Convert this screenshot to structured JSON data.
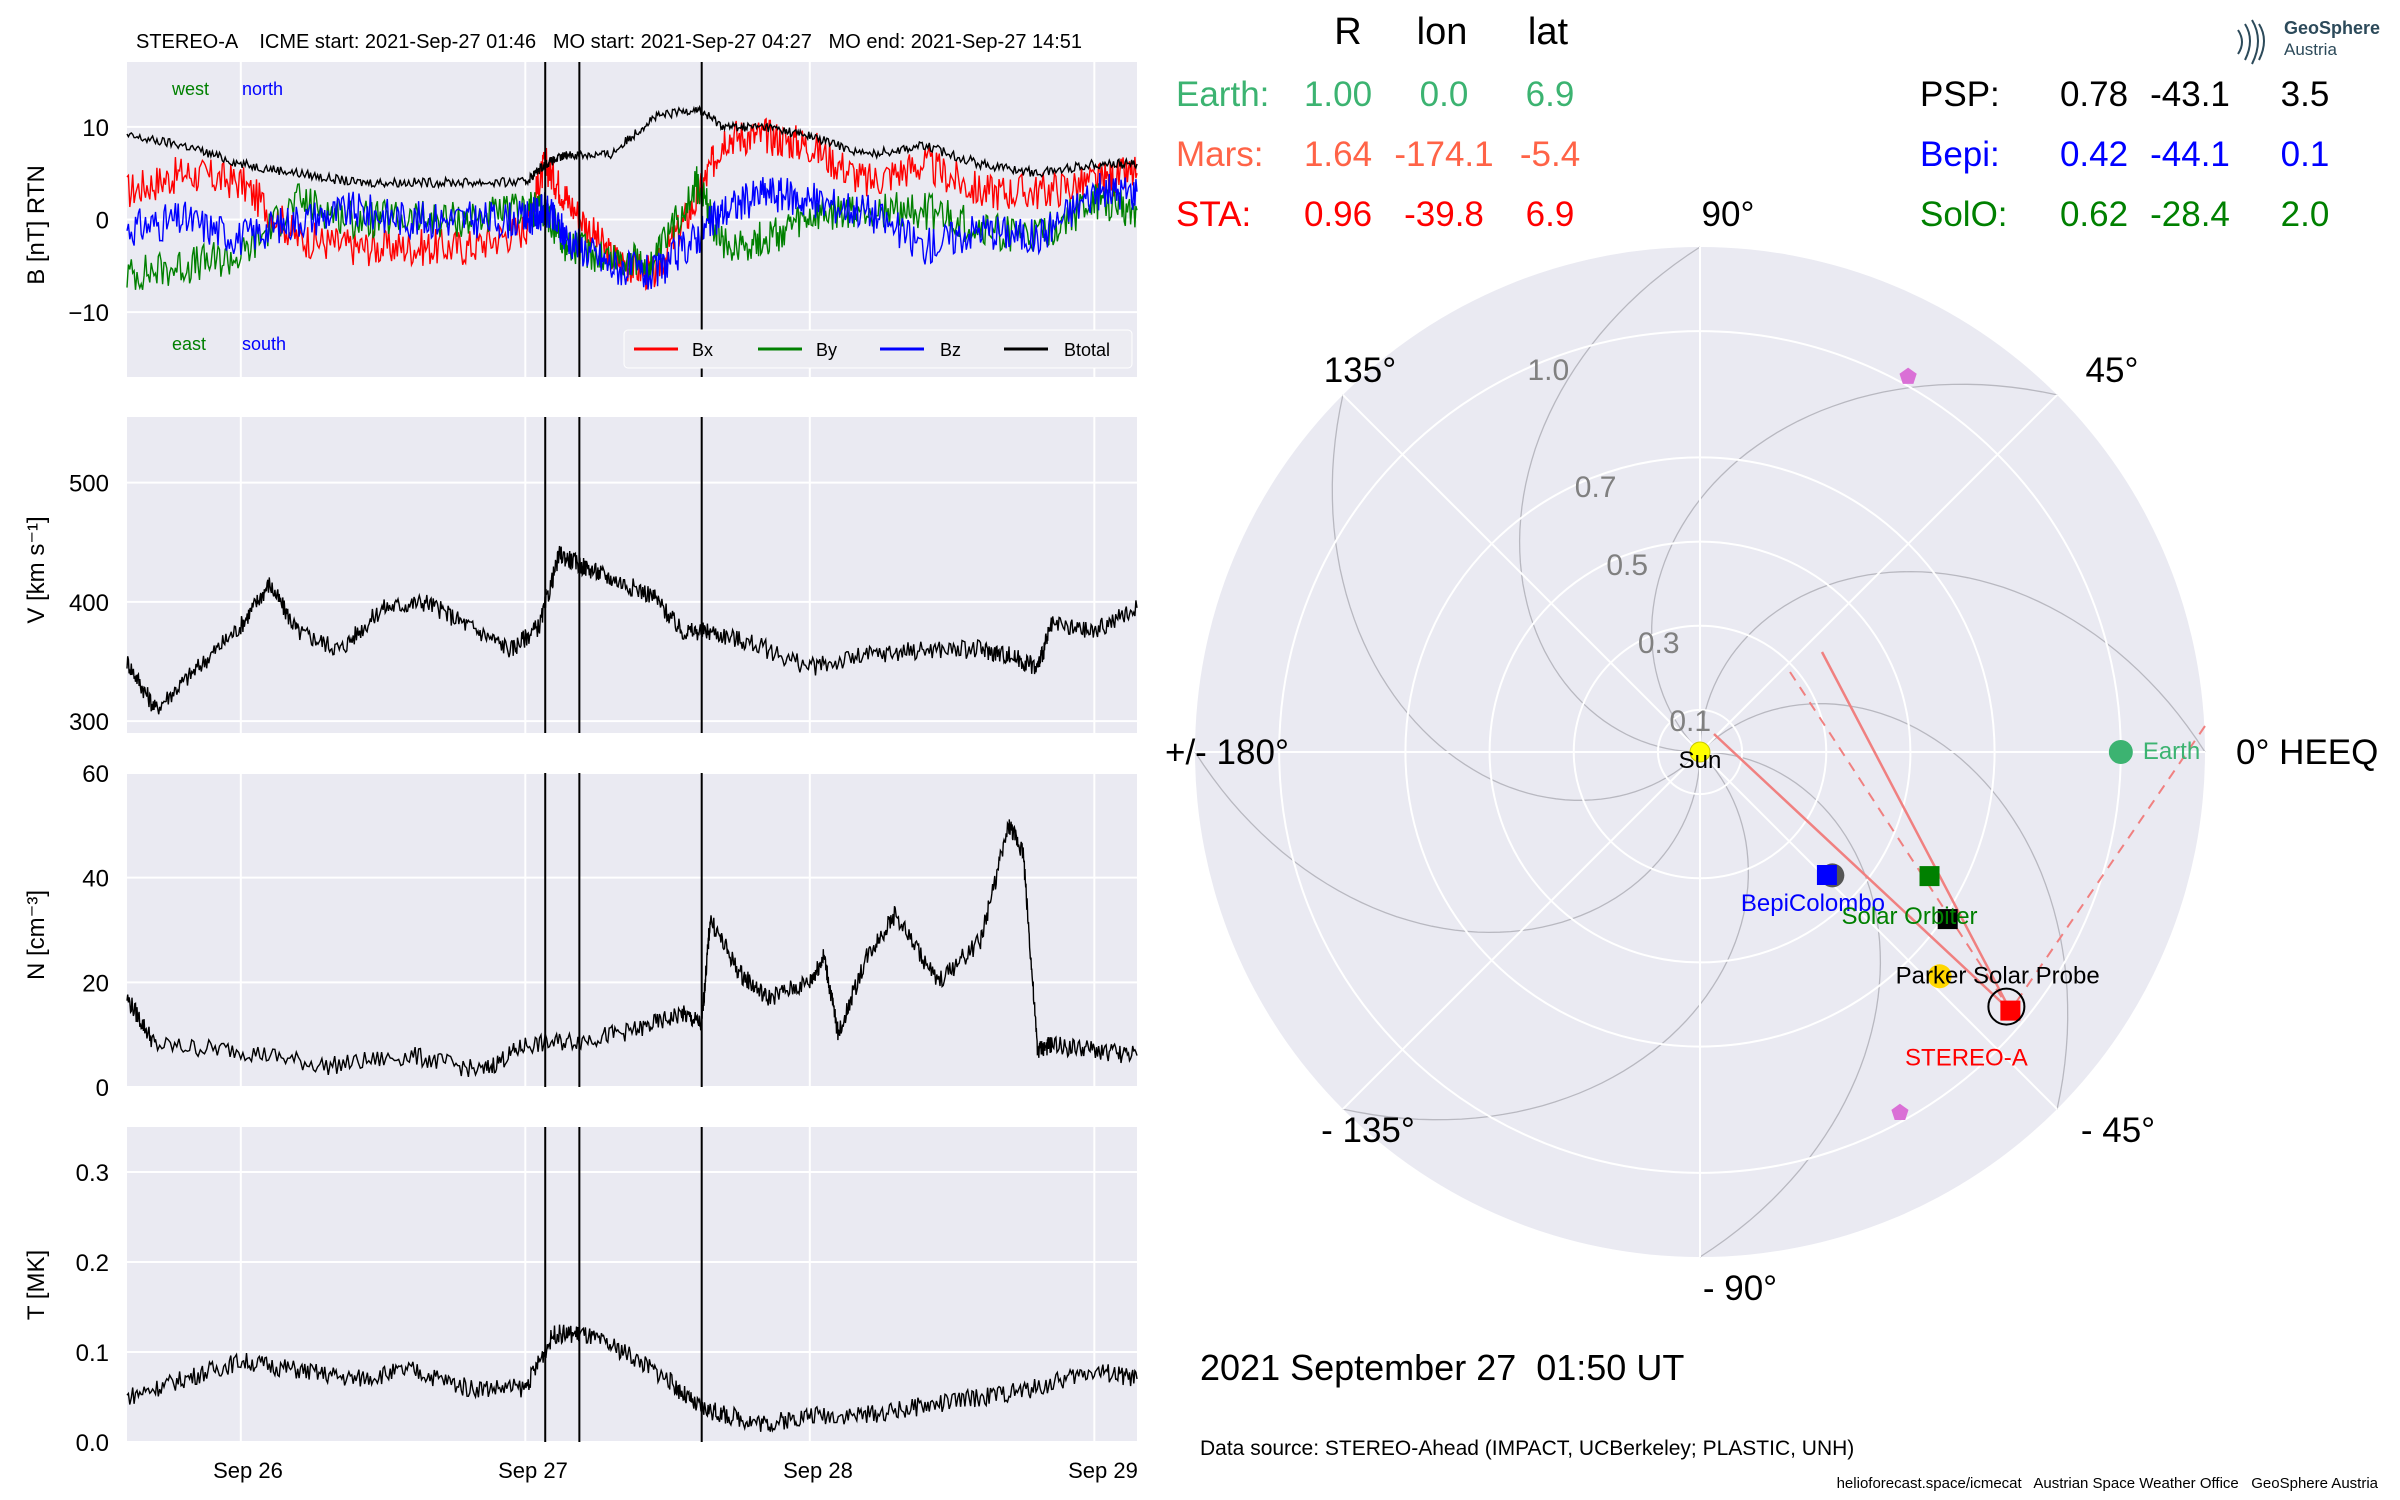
{
  "header_line": "STEREO-A    ICME start: 2021-Sep-27 01:46   MO start: 2021-Sep-27 04:27   MO end: 2021-Sep-27 14:51",
  "panels": {
    "bfield": {
      "ylabel": "B [nT] RTN",
      "ylim": [
        -17,
        17
      ],
      "yticks": [
        -10,
        0,
        10
      ],
      "tick_labels": [
        "−10",
        "0",
        "10"
      ],
      "corner_labels": {
        "west": "west",
        "north": "north",
        "east": "east",
        "south": "south"
      },
      "legend": [
        "Bx",
        "By",
        "Bz",
        "Btotal"
      ]
    },
    "speed": {
      "ylabel": "V [km s⁻¹]",
      "ylim": [
        290,
        555
      ],
      "yticks": [
        300,
        400,
        500
      ],
      "tick_labels": [
        "300",
        "400",
        "500"
      ]
    },
    "density": {
      "ylabel": "N [cm⁻³]",
      "ylim": [
        0,
        60
      ],
      "yticks": [
        0,
        20,
        40,
        60
      ],
      "tick_labels": [
        "0",
        "20",
        "40",
        "60"
      ]
    },
    "temperature": {
      "ylabel": "T [MK]",
      "ylim": [
        0,
        0.35
      ],
      "yticks": [
        0,
        0.1,
        0.2,
        0.3
      ],
      "tick_labels": [
        "0.0",
        "0.1",
        "0.2",
        "0.3"
      ]
    }
  },
  "x_tick_labels": [
    "Sep 26",
    "Sep 27",
    "Sep 28",
    "Sep 29"
  ],
  "positions_table": {
    "headers": [
      "R",
      "lon",
      "lat"
    ],
    "rows_left": [
      {
        "name": "Earth:",
        "R": "1.00",
        "lon": "0.0",
        "lat": "6.9",
        "color": "#3cb371"
      },
      {
        "name": "Mars:",
        "R": "1.64",
        "lon": "-174.1",
        "lat": "-5.4",
        "color": "#ff6347"
      },
      {
        "name": "STA:",
        "R": "0.96",
        "lon": "-39.8",
        "lat": "6.9",
        "color": "#ff0000"
      }
    ],
    "rows_right": [
      {
        "name": "PSP:",
        "R": "0.78",
        "lon": "-43.1",
        "lat": "3.5",
        "color": "#000000"
      },
      {
        "name": "Bepi:",
        "R": "0.42",
        "lon": "-44.1",
        "lat": "0.1",
        "color": "#0000ff"
      },
      {
        "name": "SolO:",
        "R": "0.62",
        "lon": "-28.4",
        "lat": "2.0",
        "color": "#008000"
      }
    ]
  },
  "polar": {
    "angle_labels": [
      "90°",
      "45°",
      "0° HEEQ",
      "- 45°",
      "- 90°",
      "- 135°",
      "+/- 180°",
      "135°"
    ],
    "radial_labels": [
      "0.1",
      "0.3",
      "0.5",
      "0.7",
      "1.0"
    ],
    "sun_label": "Sun",
    "bodies": {
      "earth": "Earth",
      "bepi": "BepiColombo",
      "solo": "Solar Orbiter",
      "psp": "Parker Solar Probe",
      "sta": "STEREO-A"
    }
  },
  "timestamp": "2021 September 27  01:50 UT",
  "data_source": "Data source: STEREO-Ahead (IMPACT, UCBerkeley; PLASTIC, UNH)",
  "footer": "helioforecast.space/icmecat   Austrian Space Weather Office   GeoSphere Austria",
  "logo": {
    "line1": "GeoSphere",
    "line2": "Austria"
  },
  "chart_data": [
    {
      "type": "line",
      "title": "STEREO-A    ICME start: 2021-Sep-27 01:46   MO start: 2021-Sep-27 04:27   MO end: 2021-Sep-27 14:51",
      "xlabel": "",
      "ylabel": "B [nT] RTN",
      "x_unit": "days since 2021-09-26 00:00 (axis shows Sep 26 .. Sep 29)",
      "xlim": [
        -0.4,
        3.15
      ],
      "ylim": [
        -17,
        17
      ],
      "event_lines": [
        1.07,
        1.19,
        1.62
      ],
      "series": [
        {
          "name": "Bx",
          "color": "#ff0000",
          "x": [
            -0.4,
            -0.2,
            0.0,
            0.2,
            0.4,
            0.6,
            0.8,
            1.0,
            1.07,
            1.15,
            1.3,
            1.45,
            1.6,
            1.7,
            1.85,
            2.0,
            2.2,
            2.4,
            2.6,
            2.8,
            3.0,
            3.15
          ],
          "y": [
            3,
            5,
            4,
            -2,
            -3,
            -3,
            -3,
            -1,
            6,
            2,
            -4,
            -6,
            2,
            9,
            9,
            8,
            4,
            6,
            3,
            3,
            4,
            5
          ]
        },
        {
          "name": "By",
          "color": "#008000",
          "x": [
            -0.4,
            -0.2,
            0.0,
            0.2,
            0.4,
            0.6,
            0.8,
            1.0,
            1.07,
            1.15,
            1.3,
            1.45,
            1.6,
            1.7,
            1.85,
            2.0,
            2.2,
            2.4,
            2.6,
            2.8,
            3.0,
            3.15
          ],
          "y": [
            -6,
            -5,
            -4,
            2,
            0,
            0,
            0,
            1,
            1,
            -3,
            -4,
            -5,
            4,
            -3,
            -2,
            0,
            1,
            1,
            -1,
            -2,
            2,
            1
          ]
        },
        {
          "name": "Bz",
          "color": "#0000ff",
          "x": [
            -0.4,
            -0.2,
            0.0,
            0.2,
            0.4,
            0.6,
            0.8,
            1.0,
            1.07,
            1.15,
            1.3,
            1.45,
            1.6,
            1.7,
            1.85,
            2.0,
            2.2,
            2.4,
            2.6,
            2.8,
            3.0,
            3.15
          ],
          "y": [
            -1,
            0,
            -2,
            0,
            1,
            0,
            0,
            0,
            1,
            -2,
            -5,
            -6,
            -2,
            1,
            3,
            2,
            1,
            -3,
            -1,
            -2,
            3,
            3
          ]
        },
        {
          "name": "Btotal",
          "color": "#000000",
          "x": [
            -0.4,
            -0.2,
            0.0,
            0.2,
            0.4,
            0.6,
            0.8,
            1.0,
            1.07,
            1.15,
            1.3,
            1.45,
            1.6,
            1.7,
            1.85,
            2.0,
            2.2,
            2.4,
            2.6,
            2.8,
            3.0,
            3.15
          ],
          "y": [
            9,
            8,
            6,
            5,
            4,
            4,
            4,
            4,
            6,
            7,
            7,
            11,
            12,
            10,
            10,
            9,
            7,
            8,
            6,
            5,
            6,
            6
          ]
        }
      ]
    },
    {
      "type": "line",
      "ylabel": "V [km s⁻¹]",
      "xlim": [
        -0.4,
        3.15
      ],
      "ylim": [
        290,
        555
      ],
      "series": [
        {
          "color": "#000000",
          "x": [
            -0.4,
            -0.3,
            -0.15,
            0.0,
            0.1,
            0.2,
            0.35,
            0.5,
            0.65,
            0.8,
            0.95,
            1.05,
            1.12,
            1.2,
            1.3,
            1.45,
            1.55,
            1.65,
            1.8,
            2.0,
            2.2,
            2.4,
            2.6,
            2.7,
            2.8,
            2.85,
            3.0,
            3.15
          ],
          "y": [
            350,
            310,
            345,
            380,
            415,
            375,
            360,
            395,
            400,
            380,
            360,
            380,
            440,
            430,
            420,
            405,
            375,
            375,
            365,
            345,
            355,
            360,
            360,
            355,
            345,
            380,
            375,
            395
          ]
        }
      ]
    },
    {
      "type": "line",
      "ylabel": "N [cm⁻³]",
      "xlim": [
        -0.4,
        3.15
      ],
      "ylim": [
        0,
        60
      ],
      "series": [
        {
          "color": "#000000",
          "x": [
            -0.4,
            -0.3,
            0.0,
            0.3,
            0.6,
            0.85,
            1.0,
            1.2,
            1.4,
            1.55,
            1.62,
            1.65,
            1.75,
            1.85,
            2.0,
            2.05,
            2.1,
            2.2,
            2.3,
            2.45,
            2.6,
            2.7,
            2.75,
            2.8,
            2.85,
            3.0,
            3.15
          ],
          "y": [
            17,
            8,
            7,
            4,
            6,
            3,
            8,
            9,
            11,
            14,
            12,
            32,
            22,
            17,
            20,
            25,
            10,
            25,
            33,
            20,
            28,
            50,
            45,
            7,
            8,
            7,
            6
          ]
        }
      ]
    },
    {
      "type": "line",
      "ylabel": "T [MK]",
      "xlim": [
        -0.4,
        3.15
      ],
      "ylim": [
        0,
        0.35
      ],
      "series": [
        {
          "color": "#000000",
          "x": [
            -0.4,
            -0.2,
            0.0,
            0.2,
            0.4,
            0.6,
            0.8,
            1.0,
            1.1,
            1.2,
            1.35,
            1.5,
            1.6,
            1.7,
            1.85,
            2.0,
            2.2,
            2.4,
            2.6,
            2.8,
            3.0,
            3.15
          ],
          "y": [
            0.05,
            0.07,
            0.09,
            0.08,
            0.07,
            0.08,
            0.06,
            0.06,
            0.12,
            0.12,
            0.1,
            0.07,
            0.04,
            0.03,
            0.02,
            0.03,
            0.03,
            0.04,
            0.05,
            0.06,
            0.08,
            0.07
          ]
        }
      ]
    },
    {
      "type": "scatter",
      "title": "",
      "projection": "polar",
      "angle_unit": "deg HEEQ longitude",
      "rlim": [
        0,
        1.2
      ],
      "points": [
        {
          "name": "Sun",
          "r": 0,
          "lon": 0,
          "color": "#ffff00"
        },
        {
          "name": "Earth",
          "r": 1.0,
          "lon": 0.0,
          "color": "#3cb371"
        },
        {
          "name": "STEREO-A",
          "r": 0.96,
          "lon": -39.8,
          "color": "#ff0000"
        },
        {
          "name": "Parker Solar Probe",
          "r": 0.78,
          "lon": -43.1,
          "color": "#ffd700"
        },
        {
          "name": "BepiColombo",
          "r": 0.42,
          "lon": -44.1,
          "color": "#0000ff"
        },
        {
          "name": "Solar Orbiter",
          "r": 0.62,
          "lon": -28.4,
          "color": "#008000"
        },
        {
          "r": 0.71,
          "lon": -34,
          "color": "#000000"
        },
        {
          "r": 0.43,
          "lon": -43,
          "color": "#555555"
        },
        {
          "r": 1.02,
          "lon": 61,
          "color": "#da70d6"
        },
        {
          "r": 0.98,
          "lon": -61,
          "color": "#da70d6"
        }
      ]
    }
  ]
}
